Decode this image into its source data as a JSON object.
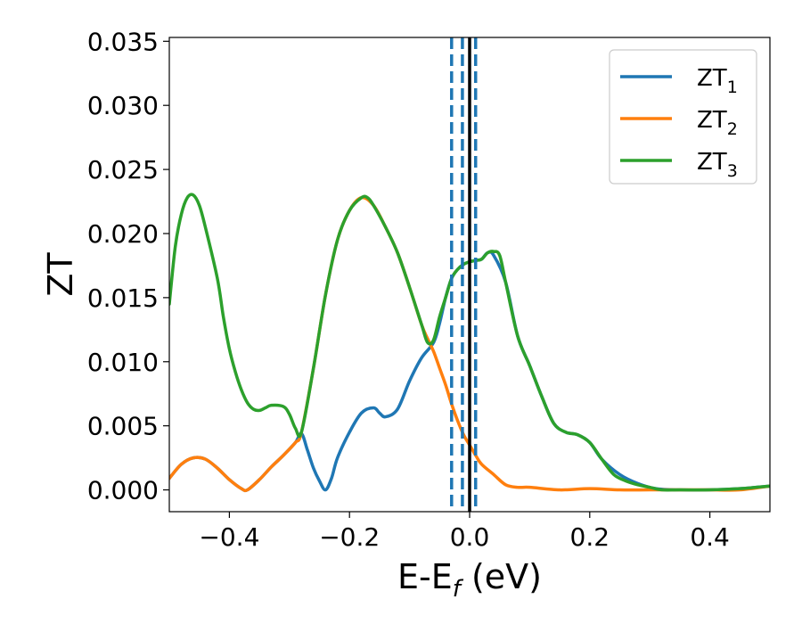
{
  "chart_data": {
    "type": "line",
    "title": "",
    "xlabel_main": "E-E",
    "xlabel_sub": "f",
    "xlabel_tail": " (eV)",
    "ylabel": "ZT",
    "xlim": [
      -0.5,
      0.5
    ],
    "ylim": [
      -0.0017,
      0.0353
    ],
    "xticks": [
      -0.4,
      -0.2,
      0.0,
      0.2,
      0.4
    ],
    "xtick_labels": [
      "−0.4",
      "−0.2",
      "0.0",
      "0.2",
      "0.4"
    ],
    "yticks": [
      0.0,
      0.005,
      0.01,
      0.015,
      0.02,
      0.025,
      0.03,
      0.035
    ],
    "ytick_labels": [
      "0.000",
      "0.005",
      "0.010",
      "0.015",
      "0.020",
      "0.025",
      "0.030",
      "0.035"
    ],
    "grid": false,
    "legend_position": "top-right",
    "vertical_lines": [
      {
        "x": -0.03,
        "style": "dashed",
        "color": "#1f77b4"
      },
      {
        "x": -0.012,
        "style": "dashed",
        "color": "#1f77b4"
      },
      {
        "x": 0.01,
        "style": "dashed",
        "color": "#1f77b4"
      },
      {
        "x": 0.0,
        "style": "solid",
        "color": "#000000"
      }
    ],
    "series": [
      {
        "name": "ZT",
        "subscript": "1",
        "color": "#1f77b4",
        "x": [
          -0.5,
          -0.48,
          -0.46,
          -0.44,
          -0.42,
          -0.4,
          -0.38,
          -0.37,
          -0.35,
          -0.33,
          -0.31,
          -0.29,
          -0.28,
          -0.27,
          -0.26,
          -0.25,
          -0.24,
          -0.23,
          -0.22,
          -0.2,
          -0.18,
          -0.16,
          -0.15,
          -0.14,
          -0.12,
          -0.1,
          -0.08,
          -0.06,
          -0.05,
          -0.04,
          -0.03,
          -0.02,
          -0.01,
          0.0,
          0.01,
          0.02,
          0.03,
          0.04,
          0.06,
          0.08,
          0.1,
          0.12,
          0.14,
          0.16,
          0.18,
          0.2,
          0.22,
          0.25,
          0.28,
          0.31,
          0.35,
          0.4,
          0.45,
          0.5
        ],
        "y": [
          0.0009,
          0.002,
          0.0025,
          0.0024,
          0.0017,
          0.0008,
          0.0001,
          0.0,
          0.0008,
          0.0018,
          0.0027,
          0.0037,
          0.0044,
          0.0031,
          0.0017,
          0.0007,
          0.0,
          0.0009,
          0.0025,
          0.0045,
          0.006,
          0.0064,
          0.006,
          0.0057,
          0.0063,
          0.0085,
          0.0103,
          0.0115,
          0.013,
          0.015,
          0.0165,
          0.0172,
          0.0176,
          0.0178,
          0.0179,
          0.018,
          0.0185,
          0.0183,
          0.0162,
          0.012,
          0.0097,
          0.0073,
          0.0052,
          0.0045,
          0.0043,
          0.0037,
          0.0024,
          0.0012,
          0.0005,
          0.0001,
          0.0,
          0.0,
          0.0001,
          0.0003
        ]
      },
      {
        "name": "ZT",
        "subscript": "2",
        "color": "#ff7f0e",
        "x": [
          -0.5,
          -0.48,
          -0.46,
          -0.44,
          -0.42,
          -0.4,
          -0.38,
          -0.37,
          -0.35,
          -0.33,
          -0.31,
          -0.29,
          -0.28,
          -0.26,
          -0.24,
          -0.22,
          -0.2,
          -0.18,
          -0.16,
          -0.14,
          -0.12,
          -0.1,
          -0.08,
          -0.07,
          -0.06,
          -0.05,
          -0.04,
          -0.03,
          -0.02,
          -0.01,
          0.0,
          0.01,
          0.02,
          0.04,
          0.06,
          0.08,
          0.1,
          0.15,
          0.2,
          0.25,
          0.3,
          0.35,
          0.4,
          0.45,
          0.5
        ],
        "y": [
          0.0009,
          0.002,
          0.0025,
          0.0024,
          0.0017,
          0.0008,
          0.0001,
          0.0,
          0.0008,
          0.0018,
          0.0027,
          0.0037,
          0.0045,
          0.0095,
          0.0152,
          0.0195,
          0.0218,
          0.0228,
          0.0222,
          0.0205,
          0.0185,
          0.0158,
          0.0129,
          0.0118,
          0.0108,
          0.0095,
          0.0082,
          0.0067,
          0.0054,
          0.0043,
          0.0035,
          0.0027,
          0.002,
          0.0012,
          0.0004,
          0.0002,
          0.0002,
          0.0,
          0.0001,
          0.0,
          0.0,
          0.0,
          0.0,
          0.0,
          0.0003
        ]
      },
      {
        "name": "ZT",
        "subscript": "3",
        "color": "#2ca02c",
        "x": [
          -0.5,
          -0.49,
          -0.48,
          -0.47,
          -0.46,
          -0.45,
          -0.44,
          -0.42,
          -0.41,
          -0.4,
          -0.39,
          -0.38,
          -0.37,
          -0.36,
          -0.35,
          -0.34,
          -0.33,
          -0.31,
          -0.3,
          -0.29,
          -0.28,
          -0.26,
          -0.24,
          -0.22,
          -0.2,
          -0.18,
          -0.17,
          -0.16,
          -0.14,
          -0.12,
          -0.1,
          -0.08,
          -0.07,
          -0.06,
          -0.05,
          -0.04,
          -0.03,
          -0.02,
          -0.01,
          0.0,
          0.01,
          0.02,
          0.03,
          0.04,
          0.05,
          0.06,
          0.08,
          0.1,
          0.12,
          0.14,
          0.16,
          0.18,
          0.2,
          0.22,
          0.24,
          0.26,
          0.28,
          0.3,
          0.32,
          0.35,
          0.4,
          0.45,
          0.5
        ],
        "y": [
          0.0145,
          0.019,
          0.0215,
          0.0228,
          0.023,
          0.0222,
          0.0205,
          0.0165,
          0.0135,
          0.011,
          0.0092,
          0.0078,
          0.0068,
          0.0063,
          0.0062,
          0.0064,
          0.0066,
          0.0065,
          0.0059,
          0.0048,
          0.0045,
          0.0095,
          0.0152,
          0.0195,
          0.0218,
          0.0228,
          0.0228,
          0.0222,
          0.0205,
          0.0185,
          0.0158,
          0.0129,
          0.0115,
          0.0117,
          0.0135,
          0.015,
          0.0165,
          0.0172,
          0.0176,
          0.0178,
          0.0179,
          0.018,
          0.0185,
          0.0186,
          0.0183,
          0.0162,
          0.012,
          0.0097,
          0.0073,
          0.0052,
          0.0045,
          0.0043,
          0.0037,
          0.0024,
          0.0012,
          0.0007,
          0.0004,
          0.0002,
          0.0,
          0.0,
          0.0,
          0.0001,
          0.0003
        ]
      }
    ]
  }
}
